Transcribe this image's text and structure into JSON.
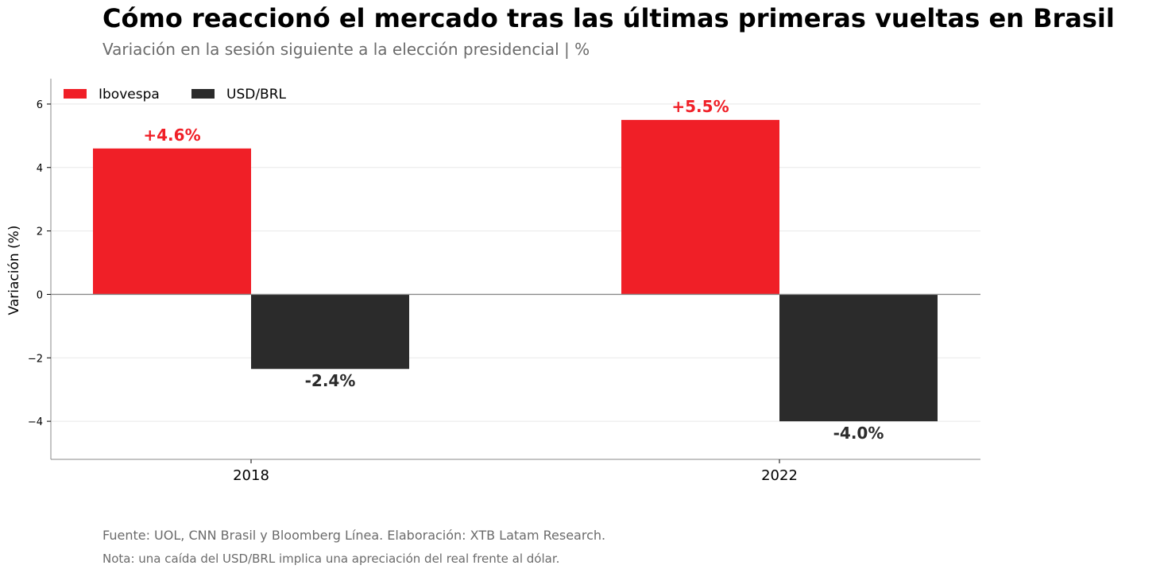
{
  "chart_data": {
    "type": "bar",
    "title": "Cómo reaccionó el mercado tras las últimas primeras vueltas en Brasil",
    "subtitle": "Variación en la sesión siguiente a la elección presidencial | %",
    "ylabel": "Variación (%)",
    "xlabel": "",
    "categories": [
      "2018",
      "2022"
    ],
    "series": [
      {
        "name": "Ibovespa",
        "values": [
          4.6,
          5.5
        ],
        "color": "#f01f27",
        "labels": [
          "+4.6%",
          "+5.5%"
        ]
      },
      {
        "name": "USD/BRL",
        "values": [
          -2.35,
          -4.0
        ],
        "color": "#2b2b2b",
        "labels": [
          "-2.4%",
          "-4.0%"
        ]
      }
    ],
    "ylim": [
      -5.2,
      6.8
    ],
    "yticks": [
      -4,
      -2,
      0,
      2,
      4,
      6
    ],
    "ytick_labels": [
      "−4",
      "−2",
      "0",
      "2",
      "4",
      "6"
    ],
    "grid": true,
    "legend": "top-left",
    "source": "Fuente: UOL, CNN Brasil y Bloomberg Línea. Elaboración: XTB Latam Research.",
    "note": "Nota: una caída del USD/BRL implica una apreciación del real frente al dólar."
  }
}
